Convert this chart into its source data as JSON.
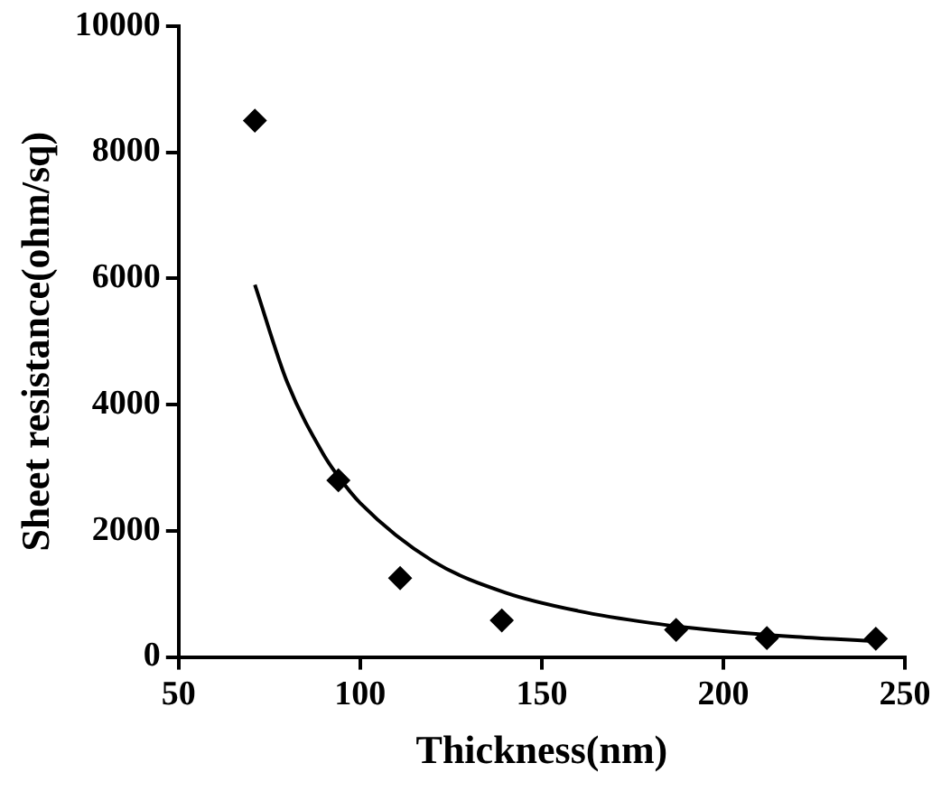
{
  "chart_data": {
    "type": "scatter",
    "xlabel": "Thickness(nm)",
    "ylabel": "Sheet resistance(ohm/sq)",
    "xlim": [
      50,
      250
    ],
    "xticks": [
      50,
      100,
      150,
      200,
      250
    ],
    "ylim": [
      0,
      10000
    ],
    "yticks": [
      0,
      2000,
      4000,
      6000,
      8000,
      10000
    ],
    "grid": false,
    "legend": false,
    "line_style": "solid",
    "series": [
      {
        "marker": "diamond",
        "color": "#000000",
        "x": [
          71,
          94,
          111,
          139,
          187,
          212,
          242
        ],
        "values": [
          8500,
          2800,
          1250,
          580,
          430,
          300,
          290
        ]
      },
      {
        "type": "line",
        "marker": "none",
        "color": "#000000",
        "x": [
          71,
          80,
          90,
          94,
          100,
          120,
          140,
          160,
          180,
          200,
          220,
          242
        ],
        "values": [
          5900,
          4340,
          3200,
          2860,
          2440,
          1520,
          1020,
          730,
          540,
          410,
          320,
          250
        ]
      }
    ]
  }
}
